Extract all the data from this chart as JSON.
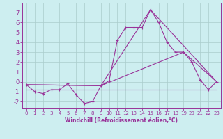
{
  "xlabel": "Windchill (Refroidissement éolien,°C)",
  "background_color": "#cdeef0",
  "line_color": "#993399",
  "grid_color": "#aacccc",
  "xlim": [
    -0.5,
    23.5
  ],
  "ylim": [
    -2.7,
    8.0
  ],
  "yticks": [
    -2,
    -1,
    0,
    1,
    2,
    3,
    4,
    5,
    6,
    7
  ],
  "xticks": [
    0,
    1,
    2,
    3,
    4,
    5,
    6,
    7,
    8,
    9,
    10,
    11,
    12,
    13,
    14,
    15,
    16,
    17,
    18,
    19,
    20,
    21,
    22,
    23
  ],
  "series1_x": [
    0,
    1,
    2,
    3,
    4,
    5,
    6,
    7,
    8,
    9,
    10,
    11,
    12,
    13,
    14,
    15,
    16,
    17,
    18,
    19,
    20,
    21,
    22,
    23
  ],
  "series1_y": [
    -0.3,
    -1.0,
    -1.2,
    -0.8,
    -0.8,
    -0.2,
    -1.3,
    -2.2,
    -2.0,
    -0.4,
    0.1,
    4.2,
    5.5,
    5.5,
    5.5,
    7.3,
    6.0,
    4.0,
    3.0,
    3.0,
    2.0,
    0.2,
    -0.8,
    0.0
  ],
  "series2_x": [
    0,
    9,
    15,
    23
  ],
  "series2_y": [
    -0.3,
    -0.4,
    7.3,
    0.0
  ],
  "series3_x": [
    0,
    23
  ],
  "series3_y": [
    -0.8,
    -0.8
  ],
  "series4_x": [
    0,
    9,
    19,
    23
  ],
  "series4_y": [
    -0.3,
    -0.4,
    3.0,
    0.0
  ],
  "xlabel_fontsize": 5.5,
  "tick_fontsize_x": 5.0,
  "tick_fontsize_y": 6.0
}
